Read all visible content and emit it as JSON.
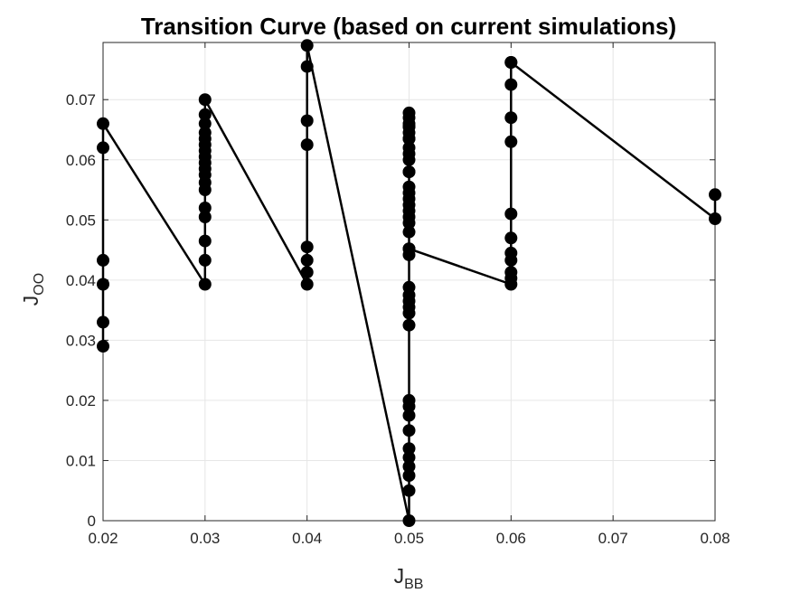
{
  "chart_data": {
    "type": "line",
    "title": "Transition Curve (based on current simulations)",
    "xlabel": {
      "main": "J",
      "sub": "BB"
    },
    "ylabel": {
      "main": "J",
      "sub": "OO"
    },
    "xlim": [
      0.02,
      0.08
    ],
    "ylim": [
      0,
      0.0795
    ],
    "grid": true,
    "x_ticks": [
      "0.02",
      "0.03",
      "0.04",
      "0.05",
      "0.06",
      "0.07",
      "0.08"
    ],
    "y_ticks": [
      "0",
      "0.01",
      "0.02",
      "0.03",
      "0.04",
      "0.05",
      "0.06",
      "0.07"
    ],
    "series": [
      {
        "color": "#000000",
        "marker": "circle",
        "x": [
          0.02,
          0.02,
          0.02,
          0.02,
          0.02,
          0.02,
          0.03,
          0.03,
          0.03,
          0.03,
          0.03,
          0.03,
          0.03,
          0.03,
          0.03,
          0.03,
          0.03,
          0.03,
          0.03,
          0.03,
          0.03,
          0.03,
          0.03,
          0.03,
          0.04,
          0.04,
          0.04,
          0.04,
          0.04,
          0.04,
          0.04,
          0.04,
          0.05,
          0.05,
          0.05,
          0.05,
          0.05,
          0.05,
          0.05,
          0.05,
          0.05,
          0.05,
          0.05,
          0.05,
          0.05,
          0.05,
          0.05,
          0.05,
          0.05,
          0.05,
          0.05,
          0.05,
          0.05,
          0.05,
          0.05,
          0.05,
          0.05,
          0.05,
          0.05,
          0.05,
          0.05,
          0.05,
          0.05,
          0.05,
          0.05,
          0.05,
          0.05,
          0.05,
          0.05,
          0.05,
          0.05,
          0.05,
          0.06,
          0.06,
          0.06,
          0.06,
          0.06,
          0.06,
          0.06,
          0.06,
          0.06,
          0.06,
          0.06,
          0.06,
          0.08,
          0.08
        ],
        "y": [
          0.029,
          0.033,
          0.0393,
          0.0433,
          0.062,
          0.066,
          0.0393,
          0.0433,
          0.0465,
          0.0505,
          0.052,
          0.055,
          0.0562,
          0.0575,
          0.0585,
          0.0595,
          0.0605,
          0.0615,
          0.0625,
          0.0635,
          0.0645,
          0.066,
          0.0675,
          0.07,
          0.0393,
          0.0413,
          0.0433,
          0.0455,
          0.0625,
          0.0665,
          0.0755,
          0.079,
          0,
          0.005,
          0.0075,
          0.009,
          0.0105,
          0.012,
          0.015,
          0.0175,
          0.019,
          0.02,
          0.0325,
          0.0345,
          0.0355,
          0.0365,
          0.0375,
          0.0388,
          0.0442,
          0.0452,
          0.048,
          0.0495,
          0.0505,
          0.0515,
          0.0525,
          0.0535,
          0.0545,
          0.0555,
          0.058,
          0.06,
          0.062,
          0.0635,
          0.0645,
          0.0655,
          0.066,
          0.067,
          0.0678,
          0.0655,
          0.0635,
          0.061,
          0.058,
          0.0452,
          0.0393,
          0.0403,
          0.0413,
          0.0433,
          0.0445,
          0.047,
          0.051,
          0.063,
          0.067,
          0.0725,
          0.0762,
          0.0762,
          0.0502,
          0.0542
        ]
      }
    ],
    "path_order": "x ascending; within each x group, points in listed order"
  }
}
